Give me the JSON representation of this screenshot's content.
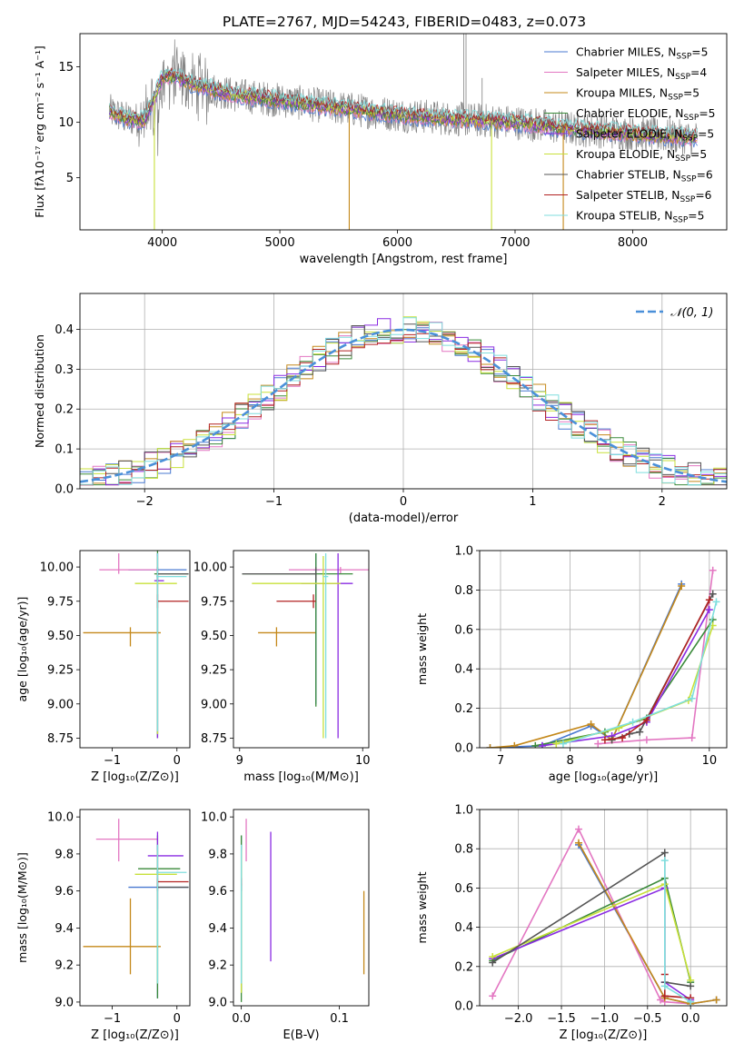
{
  "title": "PLATE=2767, MJD=54243, FIBERID=0483, z=0.073",
  "colors": {
    "Chabrier MILES": "#4878d0",
    "Salpeter MILES": "#e377c2",
    "Kroupa MILES": "#c4881a",
    "Chabrier ELODIE": "#3a8a3a",
    "Salpeter ELODIE": "#8a2be2",
    "Kroupa ELODIE": "#c8e03a",
    "Chabrier STELIB": "#555555",
    "Salpeter STELIB": "#b22222",
    "Kroupa STELIB": "#7fdede",
    "data": "#808080",
    "gaussian": "#4a90d9"
  },
  "chart_data": [
    {
      "id": "spectrum",
      "type": "line",
      "xlabel": "wavelength [Angstrom, rest frame]",
      "ylabel": "Flux [fλ10⁻¹⁷ erg cm⁻² s⁻¹ A⁻¹]",
      "xlim": [
        3300,
        8800
      ],
      "ylim": [
        0.3,
        18
      ],
      "xticks": [
        4000,
        5000,
        6000,
        7000,
        8000
      ],
      "yticks": [
        5,
        10,
        15
      ],
      "grid": false,
      "legend_position": "top-right",
      "legend": [
        {
          "label": "Chabrier MILES, N_SSP=5",
          "base": "Chabrier MILES, N",
          "sub": "SSP",
          "tail": "=5"
        },
        {
          "label": "Salpeter MILES, N_SSP=4",
          "base": "Salpeter MILES, N",
          "sub": "SSP",
          "tail": "=4"
        },
        {
          "label": "Kroupa MILES, N_SSP=5",
          "base": "Kroupa MILES, N",
          "sub": "SSP",
          "tail": "=5"
        },
        {
          "label": "Chabrier ELODIE, N_SSP=5",
          "base": "Chabrier ELODIE, N",
          "sub": "SSP",
          "tail": "=5"
        },
        {
          "label": "Salpeter ELODIE, N_SSP=5",
          "base": "Salpeter ELODIE, N",
          "sub": "SSP",
          "tail": "=5"
        },
        {
          "label": "Kroupa ELODIE, N_SSP=5",
          "base": "Kroupa ELODIE, N",
          "sub": "SSP",
          "tail": "=5"
        },
        {
          "label": "Chabrier STELIB, N_SSP=6",
          "base": "Chabrier STELIB, N",
          "sub": "SSP",
          "tail": "=6"
        },
        {
          "label": "Salpeter STELIB, N_SSP=6",
          "base": "Salpeter STELIB, N",
          "sub": "SSP",
          "tail": "=6"
        },
        {
          "label": "Kroupa STELIB, N_SSP=5",
          "base": "Kroupa STELIB, N",
          "sub": "SSP",
          "tail": "=5"
        }
      ],
      "continuum": {
        "x": [
          3550,
          3700,
          3850,
          4000,
          4100,
          4300,
          4600,
          5000,
          5500,
          6000,
          6500,
          7000,
          7500,
          8000,
          8500
        ],
        "y": [
          11.0,
          10.3,
          10.2,
          14.0,
          14.2,
          13.3,
          12.5,
          12.0,
          11.3,
          10.7,
          10.3,
          10.0,
          9.4,
          9.0,
          8.6
        ]
      },
      "model_spikes": [
        {
          "x": 3933,
          "y": 0.3
        },
        {
          "x": 5590,
          "y": 0.3
        },
        {
          "x": 6800,
          "y": 0.3
        },
        {
          "x": 7410,
          "y": 0.3
        }
      ],
      "data_emission_lines": [
        {
          "x": 6563,
          "y": 18
        },
        {
          "x": 6583,
          "y": 18
        },
        {
          "x": 6720,
          "y": 14
        }
      ]
    },
    {
      "id": "residual_hist",
      "type": "step",
      "xlabel": "(data-model)/error",
      "ylabel": "Normed distribution",
      "xlim": [
        -2.5,
        2.5
      ],
      "ylim": [
        0,
        0.49
      ],
      "xticks": [
        -2,
        -1,
        0,
        1,
        2
      ],
      "yticks": [
        0.0,
        0.1,
        0.2,
        0.3,
        0.4
      ],
      "grid": true,
      "legend_position": "top-right",
      "legend": [
        {
          "label": "N(0,1)",
          "latex": "𝒩(0, 1)"
        }
      ],
      "bin_width": 0.1,
      "base_curve": "normal(0,1)"
    },
    {
      "id": "age_vs_Z",
      "type": "errorbar",
      "xlabel": "Z [log₁₀(Z/Z⊙)]",
      "ylabel": "age  [log₁₀(age/yr)]",
      "xlim": [
        -1.5,
        0.2
      ],
      "ylim": [
        8.68,
        10.12
      ],
      "xticks": [
        -1,
        0
      ],
      "yticks": [
        8.75,
        9.0,
        9.25,
        9.5,
        9.75,
        10.0
      ],
      "grid": false,
      "points": [
        {
          "model": "Chabrier MILES",
          "x": -0.3,
          "y": 9.98,
          "xlo": -0.75,
          "xhi": 0.15,
          "ylo": 8.78,
          "yhi": 10.1
        },
        {
          "model": "Salpeter MILES",
          "x": -0.9,
          "y": 9.98,
          "xlo": -1.2,
          "xhi": -0.3,
          "ylo": 9.95,
          "yhi": 10.1
        },
        {
          "model": "Kroupa MILES",
          "x": -0.72,
          "y": 9.52,
          "xlo": -1.45,
          "xhi": -0.25,
          "ylo": 9.42,
          "yhi": 9.56
        },
        {
          "model": "Chabrier ELODIE",
          "x": -0.3,
          "y": 9.95,
          "xlo": -0.35,
          "xhi": 0.18,
          "ylo": 8.75,
          "yhi": 10.12
        },
        {
          "model": "Salpeter ELODIE",
          "x": -0.3,
          "y": 9.9,
          "xlo": -0.35,
          "xhi": -0.2,
          "ylo": 8.75,
          "yhi": 10.1
        },
        {
          "model": "Kroupa ELODIE",
          "x": -0.3,
          "y": 9.88,
          "xlo": -0.65,
          "xhi": -0.0,
          "ylo": 8.78,
          "yhi": 10.08
        },
        {
          "model": "Chabrier STELIB",
          "x": -0.3,
          "y": 9.95,
          "xlo": -0.3,
          "xhi": 0.18,
          "ylo": 9.9,
          "yhi": 10.0
        },
        {
          "model": "Salpeter STELIB",
          "x": -0.3,
          "y": 9.75,
          "xlo": -0.3,
          "xhi": 0.18,
          "ylo": 9.7,
          "yhi": 9.8
        },
        {
          "model": "Kroupa STELIB",
          "x": -0.3,
          "y": 9.93,
          "xlo": -0.32,
          "xhi": 0.15,
          "ylo": 8.8,
          "yhi": 10.1
        }
      ]
    },
    {
      "id": "age_vs_mass",
      "type": "errorbar",
      "xlabel": "mass [log₁₀(M/M⊙)]",
      "ylabel": "",
      "xlim": [
        8.95,
        10.05
      ],
      "ylim": [
        8.68,
        10.12
      ],
      "xticks": [
        9,
        10
      ],
      "yticks": [
        8.75,
        9.0,
        9.25,
        9.5,
        9.75,
        10.0
      ],
      "grid": false,
      "points": [
        {
          "model": "Chabrier MILES",
          "x": 9.62,
          "y": 9.98,
          "xlo": 9.6,
          "xhi": 9.65,
          "ylo": 9.0,
          "yhi": 10.1
        },
        {
          "model": "Salpeter MILES",
          "x": 9.82,
          "y": 9.98,
          "xlo": 9.4,
          "xhi": 10.05,
          "ylo": 9.95,
          "yhi": 10.0
        },
        {
          "model": "Kroupa MILES",
          "x": 9.3,
          "y": 9.52,
          "xlo": 9.15,
          "xhi": 9.62,
          "ylo": 9.42,
          "yhi": 9.56
        },
        {
          "model": "Chabrier ELODIE",
          "x": 9.62,
          "y": 9.95,
          "xlo": 9.02,
          "xhi": 9.92,
          "ylo": 8.98,
          "yhi": 10.1
        },
        {
          "model": "Salpeter ELODIE",
          "x": 9.8,
          "y": 9.88,
          "xlo": 9.5,
          "xhi": 9.92,
          "ylo": 8.75,
          "yhi": 10.1
        },
        {
          "model": "Kroupa ELODIE",
          "x": 9.68,
          "y": 9.88,
          "xlo": 9.1,
          "xhi": 9.82,
          "ylo": 8.75,
          "yhi": 10.08
        },
        {
          "model": "Chabrier STELIB",
          "x": 9.62,
          "y": 9.95,
          "xlo": 9.02,
          "xhi": 9.62,
          "ylo": 9.9,
          "yhi": 10.0
        },
        {
          "model": "Salpeter STELIB",
          "x": 9.6,
          "y": 9.75,
          "xlo": 9.3,
          "xhi": 9.62,
          "ylo": 9.7,
          "yhi": 9.8
        },
        {
          "model": "Kroupa STELIB",
          "x": 9.7,
          "y": 9.93,
          "xlo": 9.68,
          "xhi": 9.72,
          "ylo": 8.75,
          "yhi": 10.1
        }
      ]
    },
    {
      "id": "weight_vs_age",
      "type": "line",
      "xlabel": "age  [log₁₀(age/yr)]",
      "ylabel": "mass weight",
      "xlim": [
        6.7,
        10.25
      ],
      "ylim": [
        0,
        1.0
      ],
      "xticks": [
        7,
        8,
        9,
        10
      ],
      "yticks": [
        0.0,
        0.2,
        0.4,
        0.6,
        0.8,
        1.0
      ],
      "grid": true,
      "series": [
        {
          "model": "Chabrier MILES",
          "x": [
            6.85,
            7.6,
            8.3,
            8.6,
            9.6
          ],
          "y": [
            0.0,
            0.01,
            0.11,
            0.04,
            0.83
          ]
        },
        {
          "model": "Salpeter MILES",
          "x": [
            8.4,
            9.1,
            9.75,
            10.05
          ],
          "y": [
            0.02,
            0.04,
            0.05,
            0.9
          ]
        },
        {
          "model": "Kroupa MILES",
          "x": [
            6.85,
            7.2,
            8.3,
            8.6,
            9.6
          ],
          "y": [
            0.0,
            0.01,
            0.12,
            0.04,
            0.82
          ]
        },
        {
          "model": "Chabrier ELODIE",
          "x": [
            7.5,
            8.5,
            9.1,
            10.05
          ],
          "y": [
            0.01,
            0.08,
            0.15,
            0.65
          ]
        },
        {
          "model": "Salpeter ELODIE",
          "x": [
            7.6,
            8.6,
            9.1,
            10.0
          ],
          "y": [
            0.01,
            0.06,
            0.13,
            0.7
          ]
        },
        {
          "model": "Kroupa ELODIE",
          "x": [
            7.8,
            8.7,
            9.7,
            10.05
          ],
          "y": [
            0.02,
            0.1,
            0.24,
            0.62
          ]
        },
        {
          "model": "Chabrier STELIB",
          "x": [
            8.6,
            8.85,
            9.0,
            10.05
          ],
          "y": [
            0.04,
            0.07,
            0.08,
            0.78
          ]
        },
        {
          "model": "Salpeter STELIB",
          "x": [
            8.5,
            8.75,
            9.1,
            10.0
          ],
          "y": [
            0.04,
            0.05,
            0.14,
            0.75
          ]
        },
        {
          "model": "Kroupa STELIB",
          "x": [
            7.9,
            8.9,
            9.75,
            10.1
          ],
          "y": [
            0.02,
            0.13,
            0.25,
            0.74
          ]
        }
      ]
    },
    {
      "id": "mass_vs_Z",
      "type": "errorbar",
      "xlabel": "Z [log₁₀(Z/Z⊙)]",
      "ylabel": "mass [log₁₀(M/M⊙)]",
      "xlim": [
        -1.5,
        0.2
      ],
      "ylim": [
        8.98,
        10.04
      ],
      "xticks": [
        -1,
        0
      ],
      "yticks": [
        9.0,
        9.2,
        9.4,
        9.6,
        9.8,
        10.0
      ],
      "grid": false,
      "points": [
        {
          "model": "Chabrier MILES",
          "x": -0.3,
          "y": 9.62,
          "xlo": -0.75,
          "xhi": 0.18,
          "ylo": 9.02,
          "yhi": 9.85
        },
        {
          "model": "Salpeter MILES",
          "x": -0.9,
          "y": 9.88,
          "xlo": -1.25,
          "xhi": -0.3,
          "ylo": 9.76,
          "yhi": 9.99
        },
        {
          "model": "Kroupa MILES",
          "x": -0.72,
          "y": 9.3,
          "xlo": -1.45,
          "xhi": -0.25,
          "ylo": 9.15,
          "yhi": 9.56
        },
        {
          "model": "Chabrier ELODIE",
          "x": -0.3,
          "y": 9.72,
          "xlo": -0.6,
          "xhi": 0.05,
          "ylo": 9.02,
          "yhi": 9.9
        },
        {
          "model": "Salpeter ELODIE",
          "x": -0.3,
          "y": 9.79,
          "xlo": -0.45,
          "xhi": 0.1,
          "ylo": 9.5,
          "yhi": 9.92
        },
        {
          "model": "Kroupa ELODIE",
          "x": -0.3,
          "y": 9.69,
          "xlo": -0.65,
          "xhi": -0.0,
          "ylo": 9.1,
          "yhi": 9.82
        },
        {
          "model": "Chabrier STELIB",
          "x": -0.3,
          "y": 9.62,
          "xlo": -0.3,
          "xhi": 0.18,
          "ylo": 9.6,
          "yhi": 9.64
        },
        {
          "model": "Salpeter STELIB",
          "x": -0.3,
          "y": 9.65,
          "xlo": -0.3,
          "xhi": 0.18,
          "ylo": 9.63,
          "yhi": 9.67
        },
        {
          "model": "Kroupa STELIB",
          "x": -0.3,
          "y": 9.7,
          "xlo": -0.32,
          "xhi": 0.15,
          "ylo": 9.1,
          "yhi": 9.85
        }
      ]
    },
    {
      "id": "mass_vs_ebv",
      "type": "errorbar",
      "xlabel": "E(B-V)",
      "ylabel": "",
      "xlim": [
        -0.008,
        0.13
      ],
      "ylim": [
        8.98,
        10.04
      ],
      "xticks": [
        0.0,
        0.1
      ],
      "yticks": [
        9.0,
        9.2,
        9.4,
        9.6,
        9.8,
        10.0
      ],
      "grid": false,
      "points": [
        {
          "model": "Chabrier MILES",
          "x": 0.0,
          "y": 9.62,
          "ylo": 9.05,
          "yhi": 9.9
        },
        {
          "model": "Salpeter MILES",
          "x": 0.005,
          "y": 9.88,
          "ylo": 9.76,
          "yhi": 9.99
        },
        {
          "model": "Kroupa MILES",
          "x": 0.125,
          "y": 9.3,
          "ylo": 9.15,
          "yhi": 9.6
        },
        {
          "model": "Chabrier ELODIE",
          "x": 0.0,
          "y": 9.72,
          "ylo": 9.0,
          "yhi": 9.9
        },
        {
          "model": "Salpeter ELODIE",
          "x": 0.03,
          "y": 9.6,
          "ylo": 9.22,
          "yhi": 9.92
        },
        {
          "model": "Kroupa ELODIE",
          "x": 0.0,
          "y": 9.69,
          "ylo": 9.05,
          "yhi": 9.82
        },
        {
          "model": "Chabrier STELIB",
          "x": 0.0,
          "y": 9.62,
          "ylo": 9.6,
          "yhi": 9.64
        },
        {
          "model": "Salpeter STELIB",
          "x": 0.0,
          "y": 9.65,
          "ylo": 9.63,
          "yhi": 9.67
        },
        {
          "model": "Kroupa STELIB",
          "x": 0.0,
          "y": 9.7,
          "ylo": 9.1,
          "yhi": 9.85
        }
      ]
    },
    {
      "id": "weight_vs_Z",
      "type": "line",
      "xlabel": "Z [log₁₀(Z/Z⊙)]",
      "ylabel": "mass weight",
      "xlim": [
        -2.45,
        0.42
      ],
      "ylim": [
        0,
        1.0
      ],
      "xticks": [
        -2.0,
        -1.5,
        -1.0,
        -0.5,
        0.0
      ],
      "yticks": [
        0.0,
        0.2,
        0.4,
        0.6,
        0.8,
        1.0
      ],
      "grid": true,
      "series": [
        {
          "model": "Chabrier MILES",
          "x": [
            -1.3,
            -0.3,
            0.0,
            0.3
          ],
          "y": [
            0.82,
            0.04,
            0.01,
            0.03
          ]
        },
        {
          "model": "Salpeter MILES",
          "x": [
            -2.3,
            -1.3,
            -0.35,
            -0.3,
            0.0
          ],
          "y": [
            0.05,
            0.9,
            0.03,
            0.02,
            0.01
          ]
        },
        {
          "model": "Kroupa MILES",
          "x": [
            -1.3,
            -0.3,
            0.0,
            0.3
          ],
          "y": [
            0.83,
            0.04,
            0.01,
            0.03
          ]
        },
        {
          "model": "Chabrier ELODIE",
          "x": [
            -2.3,
            -0.3,
            0.0
          ],
          "y": [
            0.23,
            0.65,
            0.12
          ]
        },
        {
          "model": "Salpeter ELODIE",
          "x": [
            -2.3,
            -0.3,
            -0.3,
            0.0
          ],
          "y": [
            0.24,
            0.6,
            0.12,
            0.03
          ]
        },
        {
          "model": "Kroupa ELODIE",
          "x": [
            -2.3,
            -0.3,
            0.0
          ],
          "y": [
            0.25,
            0.62,
            0.13
          ]
        },
        {
          "model": "Chabrier STELIB",
          "x": [
            -2.3,
            -0.3,
            -0.3,
            0.0
          ],
          "y": [
            0.22,
            0.78,
            0.12,
            0.1
          ]
        },
        {
          "model": "Salpeter STELIB",
          "x": [
            -0.3,
            -0.3,
            0.0
          ],
          "y": [
            0.16,
            0.05,
            0.04
          ]
        },
        {
          "model": "Kroupa STELIB",
          "x": [
            -0.3,
            -0.3,
            0.0
          ],
          "y": [
            0.74,
            0.1,
            0.02
          ]
        }
      ]
    }
  ]
}
